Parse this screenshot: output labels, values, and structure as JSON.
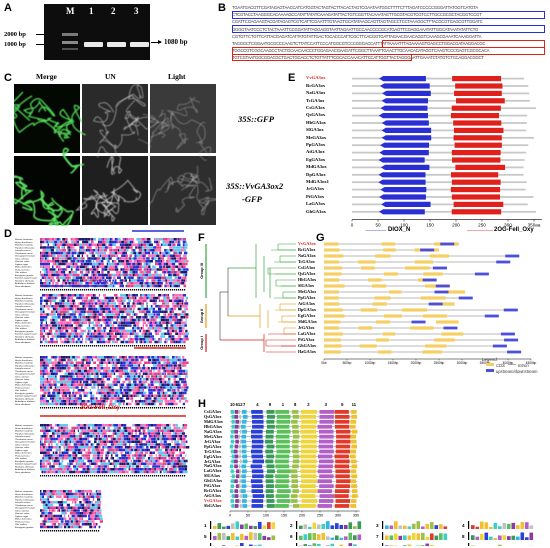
{
  "panels": {
    "a": "A",
    "b": "B",
    "c": "C",
    "d": "D",
    "e": "E",
    "f": "F",
    "g": "G",
    "h": "H"
  },
  "gel": {
    "lanes": [
      "M",
      "1",
      "2",
      "3"
    ],
    "left_markers": [
      "2000 bp",
      "1000 bp"
    ],
    "band_label": "1080 bp"
  },
  "microscopy": {
    "columns": [
      "Merge",
      "UN",
      "Light"
    ],
    "constructs": [
      "35S::GFP",
      "35S::VvGA3ox2",
      "-GFP"
    ]
  },
  "genes": {
    "e_list": [
      "VvGA3ox",
      "RcGA3ox",
      "NaGA3ox",
      "TcGA3ox",
      "CsGA3ox",
      "QsGA3ox",
      "HbGA3ox",
      "SlGA3ox",
      "MeGA3ox",
      "PpGA3ox",
      "AtGA3ox",
      "EgGA3ox",
      "MdGA3ox",
      "DpGA3ox",
      "MdGA3ox1",
      "JrGA3ox",
      "PtGA3ox",
      "LaGA3ox",
      "GhGA3ox"
    ],
    "g_list": [
      "VvGA3ox",
      "RcGA3ox",
      "NaGA3ox",
      "TcGA3ox",
      "CsGA3ox",
      "QsGA3ox",
      "HbGA3ox",
      "SlGA3ox",
      "MeGA3ox",
      "PpGA3ox",
      "AtGA3ox",
      "DpGA3ox",
      "EgGA3ox",
      "MdGA3ox",
      "JrGA3ox",
      "LaGA3ox",
      "PtGA3ox",
      "GhGA3ox",
      "HaGA3ox"
    ],
    "h_list": [
      "CsGA3ox",
      "QsGA3ox",
      "MdGA3ox",
      "HbGA3ox",
      "NaGA3ox",
      "MeGA3ox",
      "JrGA3ox",
      "PpGA3ox",
      "TcGA3ox",
      "EgGA3ox",
      "JrGA3ox",
      "NaGA3ox",
      "LaGA3ox",
      "SlGA3ox",
      "GhGA3ox",
      "PtGA3ox",
      "RcGA3ox",
      "AtGA3ox",
      "VvGA3ox",
      "SbGA3ox"
    ],
    "d_list": [
      "Ricinus communis",
      "Hevea brasiliensis",
      "Manihot esculenta",
      "Populus trichocarpa",
      "Jatropha curcas",
      "Theobroma cacao",
      "Gossypium hirsutum",
      "Citrus sinensis",
      "Quercus suber",
      "Juglans regia",
      "Malus domestica",
      "Prunus persica",
      "Vitis vinifera",
      "Eucalyptus grandis",
      "Solanum lycopersicum",
      "Nicotiana attenuata",
      "Arabidopsis thaliana",
      "Durio zibethinus",
      "Lupinus angustifolius"
    ]
  },
  "domains": {
    "dioxn": "DIOX_N",
    "og": "2OG-FeII_Oxy"
  },
  "panel_e": {
    "ticks": [
      "0",
      "50",
      "100",
      "150",
      "200",
      "250",
      "300",
      "350aa"
    ],
    "legend": [
      "DIOX_N",
      "2OG-FeII_Oxy"
    ]
  },
  "panel_f": {
    "groups": [
      "Group III",
      "Group II",
      "Group I"
    ]
  },
  "panel_g": {
    "ticks": [
      "0kb",
      "500bp",
      "1000bp",
      "1500bp",
      "2000bp",
      "2500bp",
      "3000bp",
      "3500bp",
      "4000bp",
      "4500bp"
    ],
    "legend_title": "Legend:",
    "legend": [
      "CDS",
      "Intron",
      "upstream/downstream"
    ]
  },
  "panel_h": {
    "ticks": [
      "0",
      "50",
      "100",
      "150",
      "200",
      "250",
      "300",
      "350"
    ],
    "motif_order": [
      "10",
      "6",
      "12",
      "7",
      "4",
      "9",
      "1",
      "8",
      "2",
      "3",
      "5",
      "11"
    ],
    "logo_nums": [
      "1",
      "2",
      "3",
      "4",
      "5",
      "6",
      "7",
      "8",
      "9",
      "10",
      "11",
      "12"
    ]
  },
  "colors": {
    "dioxn": "#2a2fd4",
    "og": "#e0201a",
    "cds": "#f5cf63",
    "upstream": "#4b4fdc",
    "group3": "#3aa640",
    "group2": "#e59a1a",
    "group1": "#d21f1f"
  },
  "motif_colors": [
    "#59c05a",
    "#f0d43c",
    "#b25fc7",
    "#2c3fd6",
    "#e23a2a",
    "#8b3a9f",
    "#35b6e3",
    "#9bc04a",
    "#3a9a58",
    "#3ad0c6",
    "#f0c030",
    "#c0c0c0"
  ]
}
